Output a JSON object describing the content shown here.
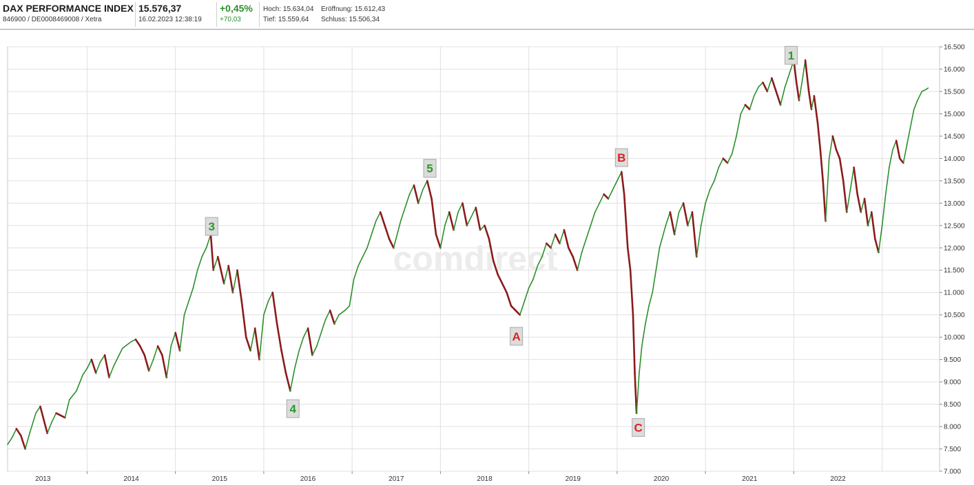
{
  "header": {
    "name": "DAX PERFORMANCE INDEX",
    "ids": "846900 / DE0008469008 / Xetra",
    "price": "15.576,37",
    "datetime": "16.02.2023 12:38:19",
    "change_pct": "+0,45%",
    "change_abs": "+70,03",
    "high": "Hoch: 15.634,04",
    "open": "Eröffnung: 15.612,43",
    "low": "Tief: 15.559,64",
    "close": "Schluss: 15.506,34"
  },
  "watermark": "comdirect",
  "colors": {
    "up": "#2a8f2a",
    "down": "#8b1a1a",
    "label_green": "#2a9a2a",
    "label_red": "#e02020",
    "grid": "#e0e0e0"
  },
  "chart_data": {
    "type": "line",
    "title": "",
    "xlabel": "",
    "ylabel": "",
    "xlim": [
      2012.6,
      2023.15
    ],
    "ylim": [
      7000,
      16500
    ],
    "x_ticks": [
      {
        "x": 2013.0,
        "label": "2013"
      },
      {
        "x": 2014.0,
        "label": "2014"
      },
      {
        "x": 2015.0,
        "label": "2015"
      },
      {
        "x": 2016.0,
        "label": "2016"
      },
      {
        "x": 2017.0,
        "label": "2017"
      },
      {
        "x": 2018.0,
        "label": "2018"
      },
      {
        "x": 2019.0,
        "label": "2019"
      },
      {
        "x": 2020.0,
        "label": "2020"
      },
      {
        "x": 2021.0,
        "label": "2021"
      },
      {
        "x": 2022.0,
        "label": "2022"
      }
    ],
    "y_ticks": [
      {
        "v": 7000,
        "label": "7.000"
      },
      {
        "v": 7500,
        "label": "7.500"
      },
      {
        "v": 8000,
        "label": "8.000"
      },
      {
        "v": 8500,
        "label": "8.500"
      },
      {
        "v": 9000,
        "label": "9.000"
      },
      {
        "v": 9500,
        "label": "9.500"
      },
      {
        "v": 10000,
        "label": "10.000"
      },
      {
        "v": 10500,
        "label": "10.500"
      },
      {
        "v": 11000,
        "label": "11.000"
      },
      {
        "v": 11500,
        "label": "11.500"
      },
      {
        "v": 12000,
        "label": "12.000"
      },
      {
        "v": 12500,
        "label": "12.500"
      },
      {
        "v": 13000,
        "label": "13.000"
      },
      {
        "v": 13500,
        "label": "13.500"
      },
      {
        "v": 14000,
        "label": "14.000"
      },
      {
        "v": 14500,
        "label": "14.500"
      },
      {
        "v": 15000,
        "label": "15.000"
      },
      {
        "v": 15500,
        "label": "15.500"
      },
      {
        "v": 16000,
        "label": "16.000"
      },
      {
        "v": 16500,
        "label": "16.500"
      }
    ],
    "series": [
      {
        "values": [
          [
            2012.6,
            7600
          ],
          [
            2012.65,
            7750
          ],
          [
            2012.7,
            7950
          ],
          [
            2012.75,
            7800
          ],
          [
            2012.8,
            7500
          ],
          [
            2012.85,
            7850
          ],
          [
            2012.92,
            8300
          ],
          [
            2012.97,
            8450
          ],
          [
            2013.05,
            7850
          ],
          [
            2013.1,
            8100
          ],
          [
            2013.15,
            8300
          ],
          [
            2013.25,
            8200
          ],
          [
            2013.3,
            8600
          ],
          [
            2013.38,
            8800
          ],
          [
            2013.45,
            9150
          ],
          [
            2013.5,
            9300
          ],
          [
            2013.55,
            9500
          ],
          [
            2013.6,
            9200
          ],
          [
            2013.65,
            9450
          ],
          [
            2013.7,
            9600
          ],
          [
            2013.75,
            9100
          ],
          [
            2013.8,
            9350
          ],
          [
            2013.85,
            9550
          ],
          [
            2013.9,
            9750
          ],
          [
            2014.0,
            9900
          ],
          [
            2014.05,
            9950
          ],
          [
            2014.1,
            9800
          ],
          [
            2014.15,
            9600
          ],
          [
            2014.2,
            9250
          ],
          [
            2014.25,
            9500
          ],
          [
            2014.3,
            9800
          ],
          [
            2014.35,
            9600
          ],
          [
            2014.4,
            9100
          ],
          [
            2014.45,
            9800
          ],
          [
            2014.5,
            10100
          ],
          [
            2014.55,
            9700
          ],
          [
            2014.6,
            10500
          ],
          [
            2014.65,
            10800
          ],
          [
            2014.7,
            11100
          ],
          [
            2014.75,
            11500
          ],
          [
            2014.8,
            11800
          ],
          [
            2014.85,
            12000
          ],
          [
            2014.9,
            12300
          ],
          [
            2014.93,
            11500
          ],
          [
            2014.98,
            11800
          ],
          [
            2015.05,
            11200
          ],
          [
            2015.1,
            11600
          ],
          [
            2015.15,
            11000
          ],
          [
            2015.2,
            11500
          ],
          [
            2015.25,
            10800
          ],
          [
            2015.3,
            10000
          ],
          [
            2015.35,
            9700
          ],
          [
            2015.4,
            10200
          ],
          [
            2015.45,
            9500
          ],
          [
            2015.5,
            10500
          ],
          [
            2015.55,
            10800
          ],
          [
            2015.6,
            11000
          ],
          [
            2015.65,
            10300
          ],
          [
            2015.7,
            9700
          ],
          [
            2015.75,
            9200
          ],
          [
            2015.8,
            8800
          ],
          [
            2015.85,
            9300
          ],
          [
            2015.9,
            9700
          ],
          [
            2015.95,
            10000
          ],
          [
            2016.0,
            10200
          ],
          [
            2016.05,
            9600
          ],
          [
            2016.1,
            9800
          ],
          [
            2016.15,
            10100
          ],
          [
            2016.2,
            10400
          ],
          [
            2016.25,
            10600
          ],
          [
            2016.3,
            10300
          ],
          [
            2016.35,
            10500
          ],
          [
            2016.42,
            10600
          ],
          [
            2016.47,
            10700
          ],
          [
            2016.52,
            11300
          ],
          [
            2016.57,
            11600
          ],
          [
            2016.62,
            11800
          ],
          [
            2016.67,
            12000
          ],
          [
            2016.72,
            12300
          ],
          [
            2016.77,
            12600
          ],
          [
            2016.82,
            12800
          ],
          [
            2016.87,
            12500
          ],
          [
            2016.92,
            12200
          ],
          [
            2016.97,
            12000
          ],
          [
            2017.05,
            12600
          ],
          [
            2017.1,
            12900
          ],
          [
            2017.15,
            13200
          ],
          [
            2017.2,
            13400
          ],
          [
            2017.25,
            13000
          ],
          [
            2017.3,
            13300
          ],
          [
            2017.35,
            13500
          ],
          [
            2017.4,
            13100
          ],
          [
            2017.45,
            12300
          ],
          [
            2017.5,
            12000
          ],
          [
            2017.55,
            12500
          ],
          [
            2017.6,
            12800
          ],
          [
            2017.65,
            12400
          ],
          [
            2017.7,
            12800
          ],
          [
            2017.75,
            13000
          ],
          [
            2017.8,
            12500
          ],
          [
            2017.85,
            12700
          ],
          [
            2017.9,
            12900
          ],
          [
            2017.95,
            12400
          ],
          [
            2018.0,
            12500
          ],
          [
            2018.05,
            12200
          ],
          [
            2018.1,
            11700
          ],
          [
            2018.15,
            11400
          ],
          [
            2018.2,
            11200
          ],
          [
            2018.25,
            11000
          ],
          [
            2018.3,
            10700
          ],
          [
            2018.35,
            10600
          ],
          [
            2018.4,
            10500
          ],
          [
            2018.45,
            10800
          ],
          [
            2018.5,
            11100
          ],
          [
            2018.55,
            11300
          ],
          [
            2018.6,
            11600
          ],
          [
            2018.65,
            11800
          ],
          [
            2018.7,
            12100
          ],
          [
            2018.75,
            12000
          ],
          [
            2018.8,
            12300
          ],
          [
            2018.85,
            12100
          ],
          [
            2018.9,
            12400
          ],
          [
            2018.95,
            12000
          ],
          [
            2019.0,
            11800
          ],
          [
            2019.05,
            11500
          ],
          [
            2019.1,
            11900
          ],
          [
            2019.15,
            12200
          ],
          [
            2019.2,
            12500
          ],
          [
            2019.25,
            12800
          ],
          [
            2019.3,
            13000
          ],
          [
            2019.35,
            13200
          ],
          [
            2019.4,
            13100
          ],
          [
            2019.45,
            13300
          ],
          [
            2019.5,
            13500
          ],
          [
            2019.55,
            13700
          ],
          [
            2019.58,
            13200
          ],
          [
            2019.62,
            12000
          ],
          [
            2019.65,
            11500
          ],
          [
            2019.68,
            10500
          ],
          [
            2019.7,
            9200
          ],
          [
            2019.72,
            8300
          ],
          [
            2019.75,
            9200
          ],
          [
            2019.78,
            9800
          ],
          [
            2019.82,
            10300
          ],
          [
            2019.86,
            10700
          ],
          [
            2019.9,
            11000
          ],
          [
            2019.94,
            11500
          ],
          [
            2019.98,
            12000
          ],
          [
            2020.05,
            12500
          ],
          [
            2020.1,
            12800
          ],
          [
            2020.15,
            12300
          ],
          [
            2020.2,
            12800
          ],
          [
            2020.25,
            13000
          ],
          [
            2020.3,
            12500
          ],
          [
            2020.35,
            12800
          ],
          [
            2020.4,
            11800
          ],
          [
            2020.45,
            12500
          ],
          [
            2020.5,
            13000
          ],
          [
            2020.55,
            13300
          ],
          [
            2020.6,
            13500
          ],
          [
            2020.65,
            13800
          ],
          [
            2020.7,
            14000
          ],
          [
            2020.75,
            13900
          ],
          [
            2020.8,
            14100
          ],
          [
            2020.85,
            14500
          ],
          [
            2020.9,
            15000
          ],
          [
            2020.95,
            15200
          ],
          [
            2021.0,
            15100
          ],
          [
            2021.05,
            15400
          ],
          [
            2021.1,
            15600
          ],
          [
            2021.15,
            15700
          ],
          [
            2021.2,
            15500
          ],
          [
            2021.25,
            15800
          ],
          [
            2021.3,
            15500
          ],
          [
            2021.35,
            15200
          ],
          [
            2021.4,
            15600
          ],
          [
            2021.45,
            15900
          ],
          [
            2021.5,
            16200
          ],
          [
            2021.53,
            15700
          ],
          [
            2021.56,
            15300
          ],
          [
            2021.6,
            15800
          ],
          [
            2021.63,
            16200
          ],
          [
            2021.67,
            15500
          ],
          [
            2021.7,
            15100
          ],
          [
            2021.73,
            15400
          ],
          [
            2021.77,
            14800
          ],
          [
            2021.8,
            14200
          ],
          [
            2021.83,
            13500
          ],
          [
            2021.86,
            12600
          ],
          [
            2021.9,
            14000
          ],
          [
            2021.94,
            14500
          ],
          [
            2021.98,
            14200
          ],
          [
            2022.02,
            14000
          ],
          [
            2022.06,
            13500
          ],
          [
            2022.1,
            12800
          ],
          [
            2022.14,
            13300
          ],
          [
            2022.18,
            13800
          ],
          [
            2022.22,
            13200
          ],
          [
            2022.26,
            12800
          ],
          [
            2022.3,
            13100
          ],
          [
            2022.34,
            12500
          ],
          [
            2022.38,
            12800
          ],
          [
            2022.42,
            12200
          ],
          [
            2022.46,
            11900
          ],
          [
            2022.5,
            12500
          ],
          [
            2022.54,
            13200
          ],
          [
            2022.58,
            13800
          ],
          [
            2022.62,
            14200
          ],
          [
            2022.66,
            14400
          ],
          [
            2022.7,
            14000
          ],
          [
            2022.74,
            13900
          ],
          [
            2022.78,
            14300
          ],
          [
            2022.82,
            14700
          ],
          [
            2022.86,
            15100
          ],
          [
            2022.9,
            15300
          ],
          [
            2022.95,
            15500
          ],
          [
            2023.0,
            15550
          ],
          [
            2023.02,
            15576
          ]
        ]
      }
    ],
    "annotations": [
      {
        "text": "1",
        "x": 2021.47,
        "y": 16310,
        "color": "green"
      },
      {
        "text": "3",
        "x": 2014.91,
        "y": 12480,
        "color": "green"
      },
      {
        "text": "4",
        "x": 2015.83,
        "y": 8400,
        "color": "green"
      },
      {
        "text": "5",
        "x": 2017.38,
        "y": 13780,
        "color": "green"
      },
      {
        "text": "A",
        "x": 2018.36,
        "y": 10020,
        "color": "red"
      },
      {
        "text": "B",
        "x": 2019.55,
        "y": 14020,
        "color": "red"
      },
      {
        "text": "C",
        "x": 2019.74,
        "y": 7980,
        "color": "red"
      }
    ]
  }
}
